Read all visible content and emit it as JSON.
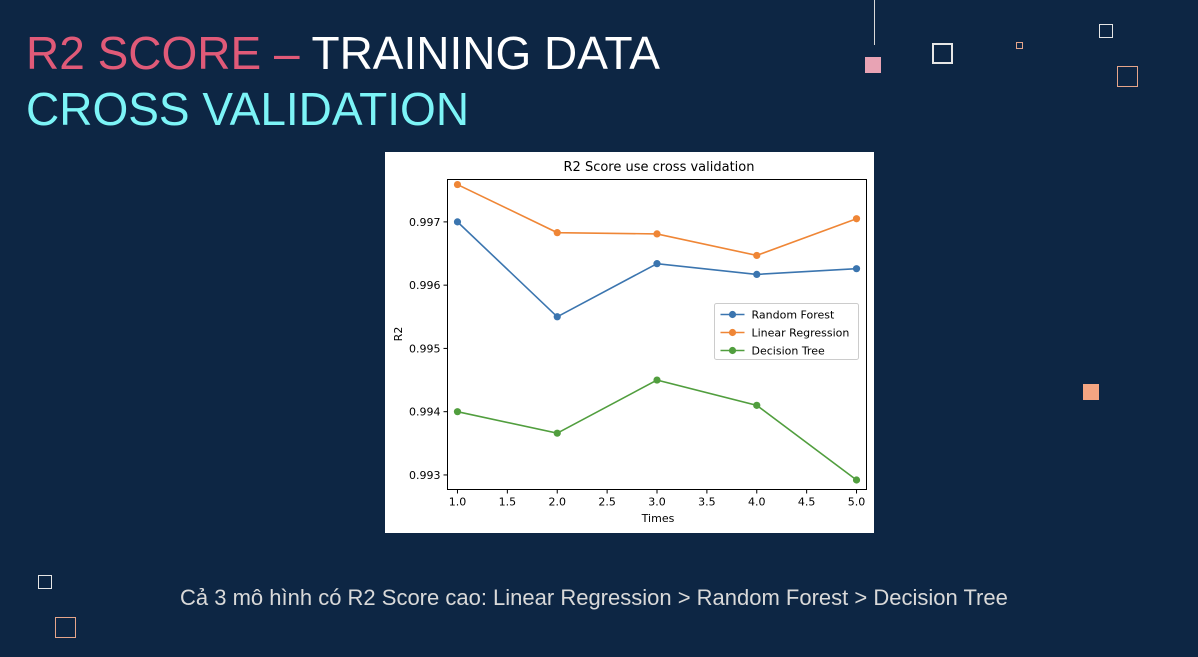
{
  "slide": {
    "title_part1": "R2 SCORE",
    "title_dash": " – ",
    "title_part2": "TRAINING DATA",
    "subtitle": "CROSS VALIDATION",
    "caption": "Cả 3 mô hình có R2 Score cao: Linear Regression > Random Forest > Decision Tree"
  },
  "colors": {
    "background": "#0d2644",
    "title_pink": "#e05a78",
    "subtitle_cyan": "#7cf4f7",
    "accent_salmon": "#f4a582"
  },
  "chart_data": {
    "type": "line",
    "title": "R2 Score use cross validation",
    "xlabel": "Times",
    "ylabel": "R2",
    "x": [
      1,
      2,
      3,
      4,
      5
    ],
    "xlim": [
      0.9,
      5.1
    ],
    "ylim": [
      0.99277,
      0.99767
    ],
    "xticks": [
      1.0,
      1.5,
      2.0,
      2.5,
      3.0,
      3.5,
      4.0,
      4.5,
      5.0
    ],
    "xtick_labels": [
      "1.0",
      "1.5",
      "2.0",
      "2.5",
      "3.0",
      "3.5",
      "4.0",
      "4.5",
      "5.0"
    ],
    "yticks": [
      0.993,
      0.994,
      0.995,
      0.996,
      0.997
    ],
    "ytick_labels": [
      "0.993",
      "0.994",
      "0.995",
      "0.996",
      "0.997"
    ],
    "grid": false,
    "legend_position": "center-right",
    "series": [
      {
        "name": "Random Forest",
        "color": "#3b75af",
        "values": [
          0.997,
          0.9955,
          0.99634,
          0.99617,
          0.99626
        ]
      },
      {
        "name": "Linear Regression",
        "color": "#ef8636",
        "values": [
          0.99759,
          0.99683,
          0.99681,
          0.99647,
          0.99705
        ]
      },
      {
        "name": "Decision Tree",
        "color": "#519e3e",
        "values": [
          0.994,
          0.99366,
          0.9945,
          0.9941,
          0.99292
        ]
      }
    ]
  }
}
